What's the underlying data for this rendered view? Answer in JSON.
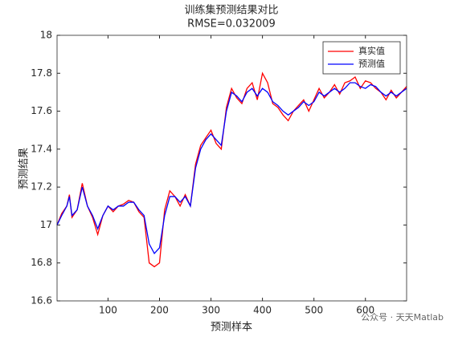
{
  "chart_data": {
    "type": "line",
    "title": "训练集预测结果对比",
    "subtitle": "RMSE=0.032009",
    "x_label": "预测样本",
    "y_label": "预测结果",
    "watermark": "公众号 · 天天Matlab",
    "x": [
      1,
      10,
      20,
      25,
      30,
      40,
      50,
      60,
      70,
      80,
      90,
      100,
      110,
      120,
      130,
      140,
      150,
      160,
      170,
      180,
      190,
      200,
      210,
      220,
      230,
      240,
      250,
      260,
      270,
      280,
      290,
      300,
      310,
      320,
      330,
      340,
      350,
      360,
      370,
      380,
      390,
      400,
      410,
      420,
      430,
      440,
      450,
      460,
      470,
      480,
      490,
      500,
      510,
      520,
      530,
      540,
      550,
      560,
      570,
      580,
      590,
      600,
      610,
      620,
      630,
      640,
      650,
      660,
      670,
      680
    ],
    "series": [
      {
        "name": "真实值",
        "color": "#ff0000",
        "values": [
          17.0,
          17.06,
          17.1,
          17.16,
          17.04,
          17.08,
          17.22,
          17.1,
          17.04,
          16.95,
          17.05,
          17.1,
          17.07,
          17.1,
          17.11,
          17.13,
          17.12,
          17.07,
          17.04,
          16.8,
          16.78,
          16.8,
          17.08,
          17.18,
          17.15,
          17.1,
          17.16,
          17.1,
          17.32,
          17.42,
          17.46,
          17.5,
          17.43,
          17.4,
          17.62,
          17.72,
          17.67,
          17.64,
          17.72,
          17.75,
          17.66,
          17.8,
          17.75,
          17.64,
          17.62,
          17.58,
          17.55,
          17.6,
          17.63,
          17.66,
          17.6,
          17.66,
          17.72,
          17.67,
          17.7,
          17.74,
          17.69,
          17.75,
          17.76,
          17.78,
          17.72,
          17.76,
          17.75,
          17.72,
          17.7,
          17.66,
          17.71,
          17.67,
          17.7,
          17.73
        ]
      },
      {
        "name": "预测值",
        "color": "#0000ff",
        "values": [
          17.0,
          17.05,
          17.1,
          17.15,
          17.05,
          17.08,
          17.2,
          17.1,
          17.05,
          16.98,
          17.05,
          17.1,
          17.08,
          17.1,
          17.1,
          17.12,
          17.12,
          17.08,
          17.05,
          16.9,
          16.85,
          16.88,
          17.05,
          17.15,
          17.15,
          17.12,
          17.15,
          17.1,
          17.3,
          17.4,
          17.45,
          17.48,
          17.45,
          17.42,
          17.6,
          17.7,
          17.68,
          17.65,
          17.7,
          17.72,
          17.68,
          17.72,
          17.7,
          17.65,
          17.63,
          17.6,
          17.58,
          17.6,
          17.62,
          17.65,
          17.63,
          17.65,
          17.7,
          17.68,
          17.7,
          17.72,
          17.7,
          17.72,
          17.75,
          17.75,
          17.73,
          17.72,
          17.74,
          17.73,
          17.7,
          17.68,
          17.7,
          17.68,
          17.7,
          17.72
        ]
      }
    ],
    "xlim": [
      1,
      680
    ],
    "xticks": [
      100,
      200,
      300,
      400,
      500,
      600
    ],
    "ylim": [
      16.6,
      18
    ],
    "yticks": [
      16.6,
      16.8,
      17,
      17.2,
      17.4,
      17.6,
      17.8,
      18
    ],
    "legend": "northeast",
    "grid": false
  }
}
